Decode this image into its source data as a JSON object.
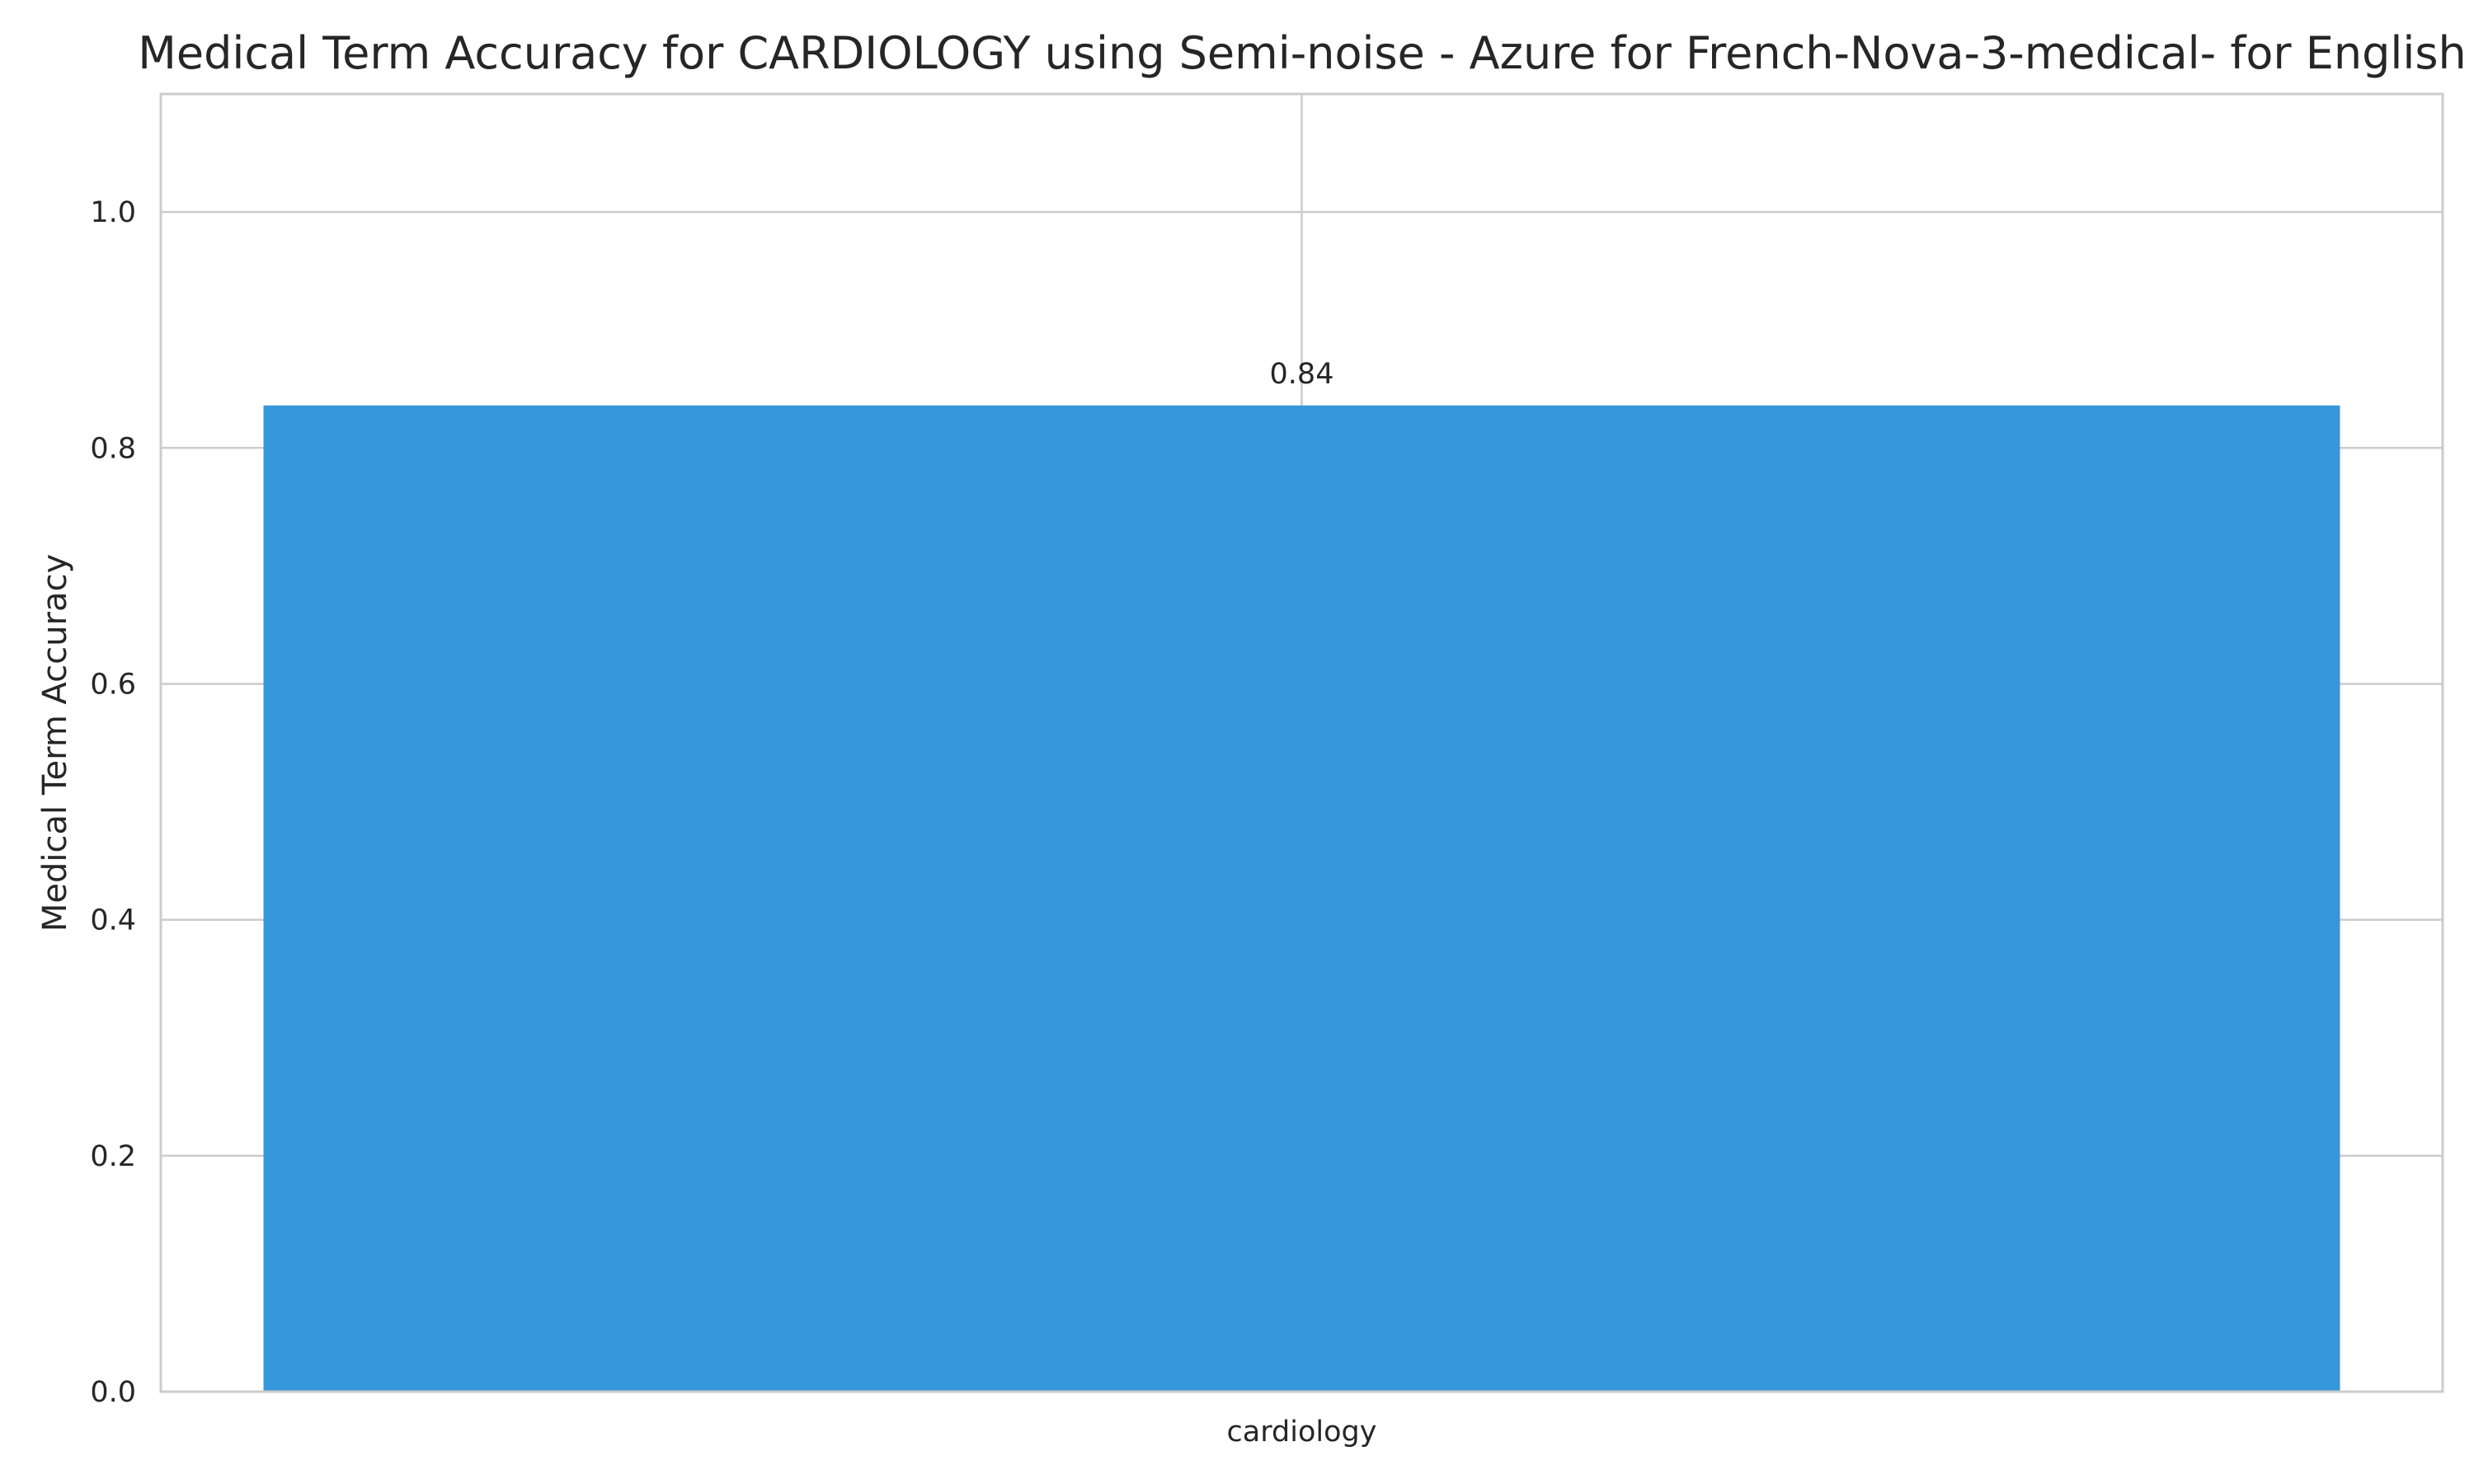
{
  "chart_data": {
    "type": "bar",
    "title": "Medical Term Accuracy for CARDIOLOGY using Semi-noise - Azure for French-Nova-3-medical- for English",
    "xlabel": "",
    "ylabel": "Medical Term Accuracy",
    "categories": [
      "cardiology"
    ],
    "values": [
      0.836
    ],
    "data_labels": [
      "0.84"
    ],
    "ylim": [
      0,
      1.1
    ],
    "yticks": [
      0.0,
      0.2,
      0.4,
      0.6,
      0.8,
      1.0
    ],
    "ytick_labels": [
      "0.0",
      "0.2",
      "0.4",
      "0.6",
      "0.8",
      "1.0"
    ],
    "grid": true,
    "bar_color": "#3697da"
  }
}
